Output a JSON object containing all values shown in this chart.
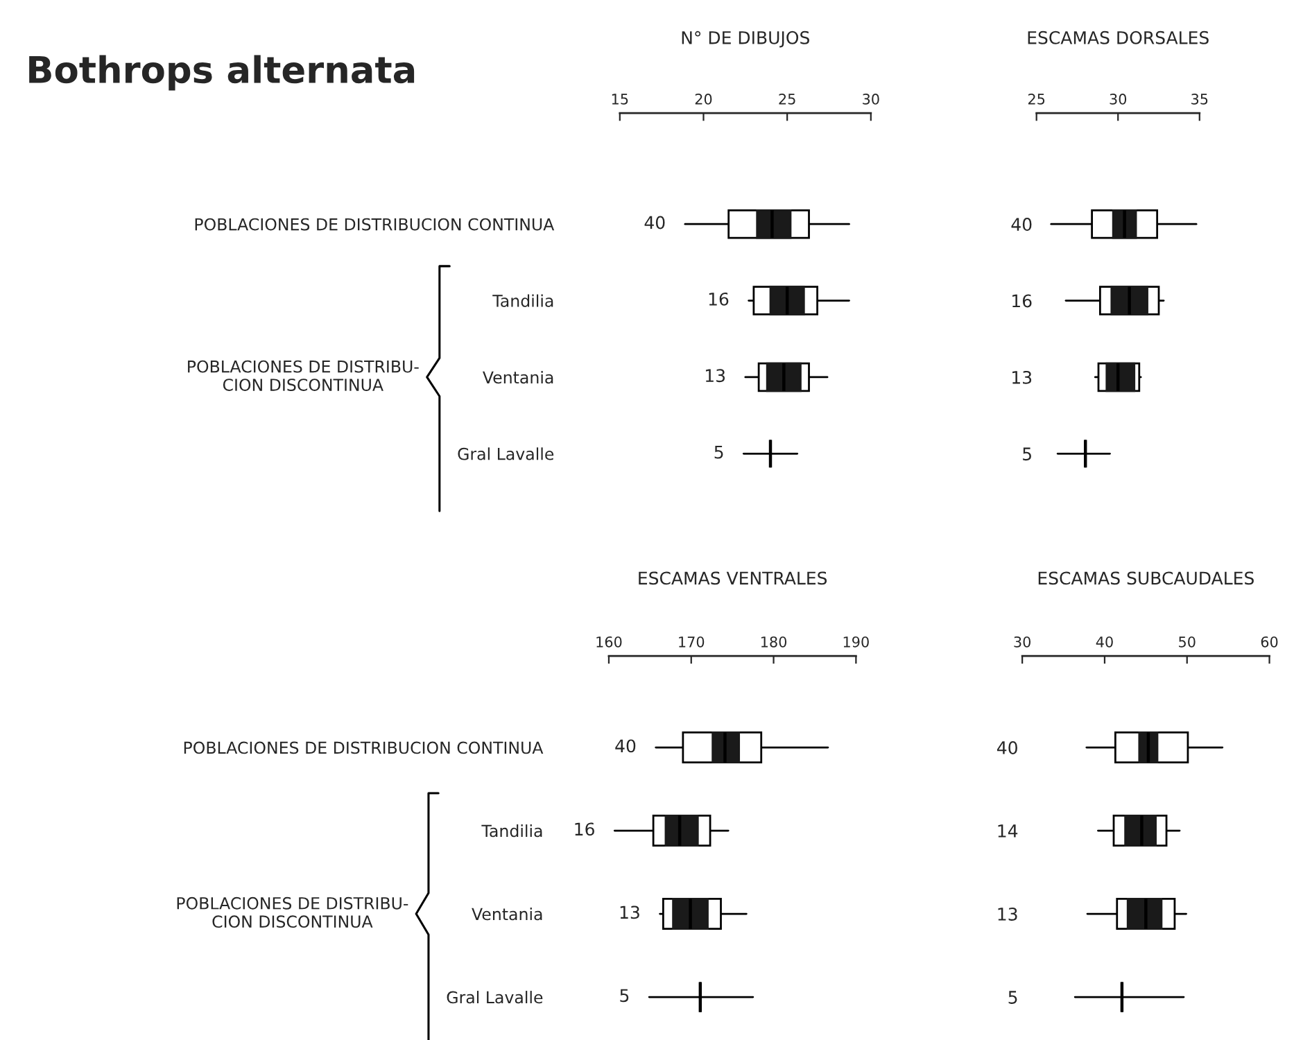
{
  "chart_data": [
    {
      "type": "box",
      "title": "N° DE DIBUJOS",
      "orientation": "horizontal",
      "categories": [
        "POBLACIONES DE DISTRIBUCION CONTINUA",
        "Tandilia",
        "Ventania",
        "Gral Lavalle"
      ],
      "xlim": [
        15,
        30
      ],
      "xticks": [
        15,
        20,
        25,
        30
      ],
      "boxes": [
        {
          "low": 18.9,
          "q1": 21.5,
          "median": 24.1,
          "q3": 26.3,
          "high": 28.7
        },
        {
          "low": 22.7,
          "q1": 23.0,
          "median": 25.0,
          "q3": 26.8,
          "high": 28.7
        },
        {
          "low": 22.5,
          "q1": 23.3,
          "median": 24.8,
          "q3": 26.3,
          "high": 27.4
        },
        {
          "low": 22.4,
          "q1": 24.0,
          "median": 24.0,
          "q3": 24.0,
          "high": 25.6
        }
      ],
      "series": [
        {
          "type": "bar",
          "color": "#1a1a1a",
          "base": [
            23.2,
            24.0,
            23.8,
            null
          ],
          "values": [
            2.0,
            2.0,
            2.0,
            null
          ]
        }
      ],
      "color": "#000000",
      "annotations": [
        "Bothrops alternata",
        "POBLACIONES DE DISTRIBU-\nCION DISCONTINUA",
        "40",
        "16",
        "13",
        "5"
      ]
    },
    {
      "type": "box",
      "title": "ESCAMAS DORSALES",
      "orientation": "horizontal",
      "categories": [
        "40",
        "16",
        "13",
        "5"
      ],
      "xlim": [
        25,
        35
      ],
      "xticks": [
        25,
        30,
        35
      ],
      "boxes": [
        {
          "low": 25.9,
          "q1": 28.4,
          "median": 30.4,
          "q3": 32.4,
          "high": 34.8
        },
        {
          "low": 26.8,
          "q1": 28.9,
          "median": 30.7,
          "q3": 32.5,
          "high": 32.8
        },
        {
          "low": 28.6,
          "q1": 28.8,
          "median": 30.0,
          "q3": 31.3,
          "high": 31.4
        },
        {
          "low": 26.3,
          "q1": 28.0,
          "median": 28.0,
          "q3": 28.0,
          "high": 29.5
        }
      ],
      "series": [
        {
          "type": "bar",
          "color": "#1a1a1a",
          "base": [
            29.7,
            29.6,
            29.3,
            null
          ],
          "values": [
            1.4,
            2.2,
            1.7,
            null
          ]
        }
      ],
      "color": "#000000"
    },
    {
      "type": "box",
      "title": "ESCAMAS VENTRALES",
      "orientation": "horizontal",
      "categories": [
        "POBLACIONES DE DISTRIBUCION CONTINUA",
        "Tandilia",
        "Ventania",
        "Gral Lavalle"
      ],
      "xlim": [
        160,
        190
      ],
      "xticks": [
        160,
        170,
        180,
        190
      ],
      "boxes": [
        {
          "low": 165.7,
          "q1": 169.0,
          "median": 174.1,
          "q3": 178.5,
          "high": 186.6
        },
        {
          "low": 160.7,
          "q1": 165.4,
          "median": 168.6,
          "q3": 172.3,
          "high": 174.5
        },
        {
          "low": 166.2,
          "q1": 166.6,
          "median": 169.9,
          "q3": 173.6,
          "high": 176.7
        },
        {
          "low": 164.9,
          "q1": 171.1,
          "median": 171.1,
          "q3": 171.1,
          "high": 177.5
        }
      ],
      "series": [
        {
          "type": "bar",
          "color": "#1a1a1a",
          "base": [
            172.6,
            166.9,
            167.8,
            null
          ],
          "values": [
            3.2,
            3.9,
            4.2,
            null
          ]
        }
      ],
      "color": "#000000",
      "annotations": [
        "POBLACIONES DE DISTRIBU-\nCION DISCONTINUA",
        "40",
        "16",
        "13",
        "5"
      ]
    },
    {
      "type": "box",
      "title": "ESCAMAS SUBCAUDALES",
      "orientation": "horizontal",
      "categories": [
        "40",
        "14",
        "13",
        "5"
      ],
      "xlim": [
        30,
        60
      ],
      "xticks": [
        30,
        40,
        50,
        60
      ],
      "boxes": [
        {
          "low": 37.8,
          "q1": 41.3,
          "median": 45.3,
          "q3": 50.1,
          "high": 54.3
        },
        {
          "low": 39.2,
          "q1": 41.1,
          "median": 44.5,
          "q3": 47.5,
          "high": 49.1
        },
        {
          "low": 37.9,
          "q1": 41.5,
          "median": 45.0,
          "q3": 48.5,
          "high": 49.9
        },
        {
          "low": 36.4,
          "q1": 42.1,
          "median": 42.1,
          "q3": 42.1,
          "high": 49.6
        }
      ],
      "series": [
        {
          "type": "bar",
          "color": "#1a1a1a",
          "base": [
            44.2,
            42.5,
            42.8,
            null
          ],
          "values": [
            2.2,
            3.7,
            4.1,
            null
          ]
        }
      ],
      "color": "#000000"
    }
  ]
}
